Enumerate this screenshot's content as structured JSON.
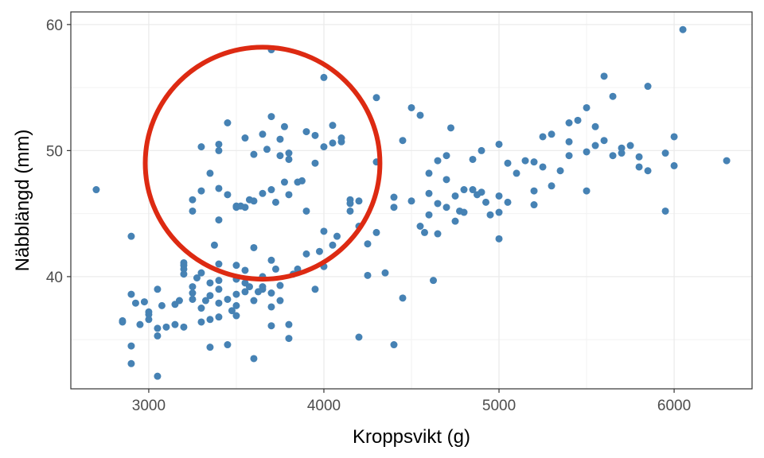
{
  "chart_data": {
    "type": "scatter",
    "xlabel": "Kroppsvikt (g)",
    "ylabel": "Näbblängd (mm)",
    "xlim": [
      2555,
      6445
    ],
    "ylim": [
      31.1,
      61.0
    ],
    "x_ticks": [
      3000,
      4000,
      5000,
      6000
    ],
    "x_tick_labels": [
      "3000",
      "4000",
      "5000",
      "6000"
    ],
    "y_ticks": [
      40,
      50,
      60
    ],
    "y_tick_labels": [
      "40",
      "50",
      "60"
    ],
    "grid": true,
    "point_color": "#4682B4",
    "annotations": [
      {
        "type": "circle",
        "color": "#DD2A12",
        "center": [
          3650,
          49
        ],
        "radius_x_units": 670,
        "radius_y_units": 9.2
      }
    ],
    "points": [
      [
        2700,
        46.9
      ],
      [
        2850,
        36.5
      ],
      [
        2850,
        36.4
      ],
      [
        2900,
        38.6
      ],
      [
        2900,
        34.5
      ],
      [
        2900,
        33.1
      ],
      [
        2900,
        43.2
      ],
      [
        2925,
        37.9
      ],
      [
        2950,
        36.2
      ],
      [
        2975,
        38.0
      ],
      [
        3000,
        37.2
      ],
      [
        3000,
        37.0
      ],
      [
        3000,
        36.6
      ],
      [
        3050,
        39.0
      ],
      [
        3050,
        35.3
      ],
      [
        3050,
        32.1
      ],
      [
        3050,
        35.9
      ],
      [
        3075,
        37.7
      ],
      [
        3100,
        36.0
      ],
      [
        3150,
        37.8
      ],
      [
        3150,
        36.2
      ],
      [
        3175,
        38.1
      ],
      [
        3200,
        36.0
      ],
      [
        3200,
        40.2
      ],
      [
        3200,
        41.1
      ],
      [
        3200,
        40.9
      ],
      [
        3200,
        40.6
      ],
      [
        3250,
        39.2
      ],
      [
        3250,
        38.7
      ],
      [
        3250,
        38.2
      ],
      [
        3250,
        45.2
      ],
      [
        3250,
        46.1
      ],
      [
        3275,
        39.9
      ],
      [
        3300,
        40.3
      ],
      [
        3300,
        36.4
      ],
      [
        3300,
        37.5
      ],
      [
        3300,
        50.3
      ],
      [
        3300,
        46.8
      ],
      [
        3325,
        38.1
      ],
      [
        3350,
        39.5
      ],
      [
        3350,
        38.5
      ],
      [
        3350,
        36.6
      ],
      [
        3350,
        48.2
      ],
      [
        3350,
        34.4
      ],
      [
        3375,
        42.5
      ],
      [
        3400,
        37.9
      ],
      [
        3400,
        39.0
      ],
      [
        3400,
        36.8
      ],
      [
        3400,
        41.0
      ],
      [
        3400,
        50.5
      ],
      [
        3400,
        50.0
      ],
      [
        3400,
        47.0
      ],
      [
        3400,
        44.5
      ],
      [
        3400,
        39.7
      ],
      [
        3450,
        46.5
      ],
      [
        3450,
        38.2
      ],
      [
        3450,
        34.6
      ],
      [
        3450,
        52.2
      ],
      [
        3475,
        37.3
      ],
      [
        3500,
        45.5
      ],
      [
        3500,
        45.6
      ],
      [
        3500,
        39.8
      ],
      [
        3500,
        40.9
      ],
      [
        3500,
        37.7
      ],
      [
        3500,
        38.6
      ],
      [
        3500,
        36.9
      ],
      [
        3525,
        45.6
      ],
      [
        3550,
        39.5
      ],
      [
        3550,
        40.5
      ],
      [
        3550,
        51.0
      ],
      [
        3550,
        45.5
      ],
      [
        3550,
        38.8
      ],
      [
        3575,
        46.1
      ],
      [
        3575,
        39.2
      ],
      [
        3600,
        46.0
      ],
      [
        3600,
        49.7
      ],
      [
        3600,
        38.1
      ],
      [
        3600,
        33.5
      ],
      [
        3600,
        42.3
      ],
      [
        3625,
        38.8
      ],
      [
        3650,
        51.3
      ],
      [
        3650,
        46.6
      ],
      [
        3650,
        40.0
      ],
      [
        3650,
        39.2
      ],
      [
        3650,
        39.0
      ],
      [
        3675,
        50.1
      ],
      [
        3700,
        58.0
      ],
      [
        3700,
        46.9
      ],
      [
        3700,
        52.7
      ],
      [
        3700,
        41.3
      ],
      [
        3700,
        38.7
      ],
      [
        3700,
        37.6
      ],
      [
        3700,
        36.1
      ],
      [
        3725,
        45.9
      ],
      [
        3725,
        40.6
      ],
      [
        3750,
        50.9
      ],
      [
        3750,
        49.6
      ],
      [
        3750,
        39.3
      ],
      [
        3750,
        38.1
      ],
      [
        3775,
        51.9
      ],
      [
        3775,
        47.5
      ],
      [
        3800,
        49.3
      ],
      [
        3800,
        46.5
      ],
      [
        3800,
        49.8
      ],
      [
        3800,
        35.1
      ],
      [
        3800,
        36.2
      ],
      [
        3825,
        40.2
      ],
      [
        3850,
        47.5
      ],
      [
        3850,
        40.6
      ],
      [
        3875,
        47.6
      ],
      [
        3900,
        51.5
      ],
      [
        3900,
        45.2
      ],
      [
        3900,
        41.8
      ],
      [
        3950,
        49.0
      ],
      [
        3950,
        51.2
      ],
      [
        3950,
        39.0
      ],
      [
        3975,
        42.0
      ],
      [
        4000,
        55.8
      ],
      [
        4000,
        50.3
      ],
      [
        4000,
        43.6
      ],
      [
        4000,
        40.8
      ],
      [
        4050,
        50.6
      ],
      [
        4050,
        52.0
      ],
      [
        4050,
        42.5
      ],
      [
        4075,
        43.2
      ],
      [
        4100,
        50.7
      ],
      [
        4100,
        51.0
      ],
      [
        4150,
        46.1
      ],
      [
        4150,
        45.8
      ],
      [
        4150,
        45.2
      ],
      [
        4200,
        46.0
      ],
      [
        4200,
        44.0
      ],
      [
        4200,
        35.2
      ],
      [
        4250,
        42.6
      ],
      [
        4250,
        40.1
      ],
      [
        4300,
        54.2
      ],
      [
        4300,
        49.1
      ],
      [
        4300,
        43.5
      ],
      [
        4350,
        40.3
      ],
      [
        4400,
        45.5
      ],
      [
        4400,
        46.3
      ],
      [
        4400,
        34.6
      ],
      [
        4450,
        50.8
      ],
      [
        4450,
        38.3
      ],
      [
        4500,
        53.4
      ],
      [
        4500,
        46.0
      ],
      [
        4550,
        52.8
      ],
      [
        4550,
        44.0
      ],
      [
        4575,
        43.5
      ],
      [
        4600,
        48.2
      ],
      [
        4600,
        46.6
      ],
      [
        4600,
        44.9
      ],
      [
        4625,
        39.7
      ],
      [
        4650,
        49.2
      ],
      [
        4650,
        45.8
      ],
      [
        4650,
        43.4
      ],
      [
        4700,
        45.5
      ],
      [
        4700,
        47.7
      ],
      [
        4700,
        49.6
      ],
      [
        4725,
        51.8
      ],
      [
        4750,
        46.4
      ],
      [
        4750,
        44.4
      ],
      [
        4775,
        45.2
      ],
      [
        4800,
        46.9
      ],
      [
        4800,
        45.1
      ],
      [
        4850,
        49.3
      ],
      [
        4850,
        46.9
      ],
      [
        4875,
        46.5
      ],
      [
        4900,
        50.0
      ],
      [
        4900,
        46.7
      ],
      [
        4925,
        45.9
      ],
      [
        4950,
        44.9
      ],
      [
        5000,
        50.5
      ],
      [
        5000,
        46.4
      ],
      [
        5000,
        45.1
      ],
      [
        5000,
        43.0
      ],
      [
        5050,
        45.9
      ],
      [
        5050,
        49.0
      ],
      [
        5100,
        48.2
      ],
      [
        5150,
        49.2
      ],
      [
        5200,
        45.7
      ],
      [
        5200,
        46.8
      ],
      [
        5200,
        49.1
      ],
      [
        5250,
        48.7
      ],
      [
        5250,
        51.1
      ],
      [
        5300,
        47.2
      ],
      [
        5300,
        51.3
      ],
      [
        5350,
        48.4
      ],
      [
        5400,
        50.7
      ],
      [
        5400,
        49.6
      ],
      [
        5400,
        52.2
      ],
      [
        5450,
        52.4
      ],
      [
        5500,
        53.4
      ],
      [
        5500,
        49.9
      ],
      [
        5500,
        46.8
      ],
      [
        5550,
        50.4
      ],
      [
        5550,
        51.9
      ],
      [
        5600,
        55.9
      ],
      [
        5600,
        50.8
      ],
      [
        5650,
        54.3
      ],
      [
        5650,
        49.6
      ],
      [
        5700,
        49.8
      ],
      [
        5700,
        50.2
      ],
      [
        5750,
        50.4
      ],
      [
        5800,
        49.5
      ],
      [
        5800,
        48.7
      ],
      [
        5850,
        55.1
      ],
      [
        5850,
        48.4
      ],
      [
        5950,
        49.8
      ],
      [
        5950,
        45.2
      ],
      [
        6000,
        51.1
      ],
      [
        6000,
        48.8
      ],
      [
        6050,
        59.6
      ],
      [
        6300,
        49.2
      ]
    ]
  }
}
